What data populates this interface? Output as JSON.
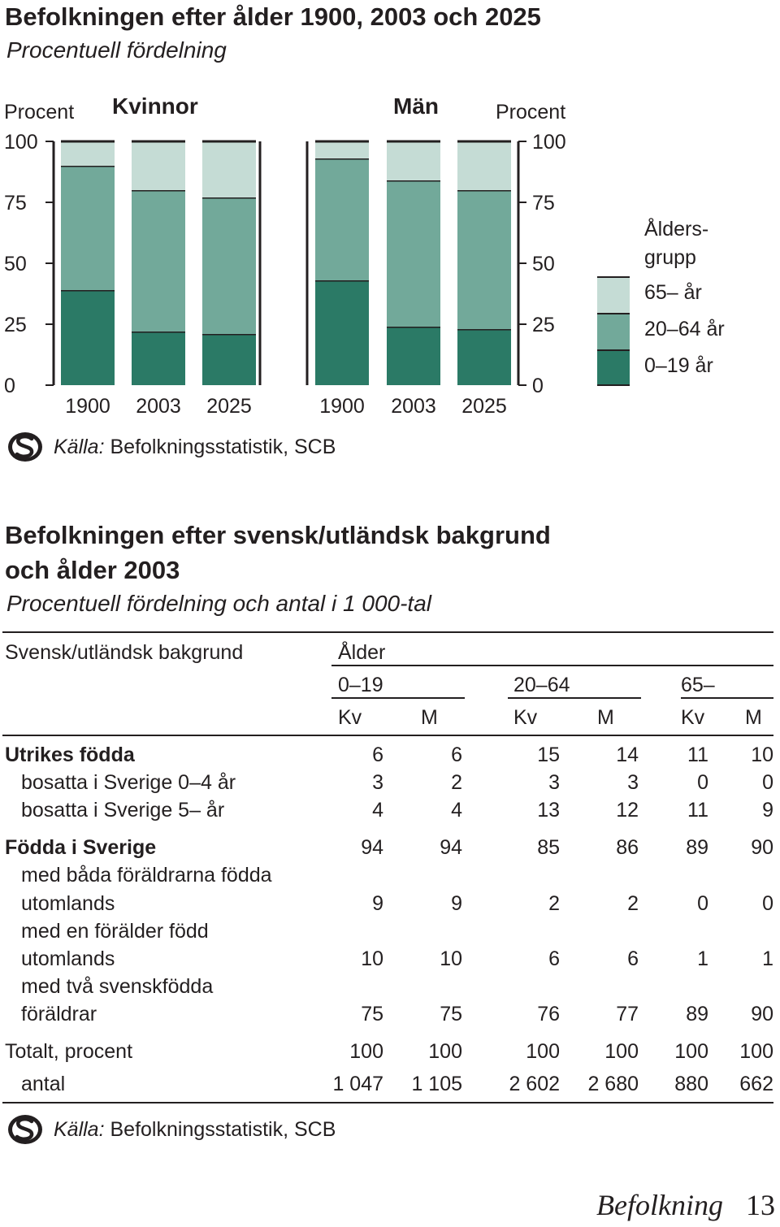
{
  "chart": {
    "title": "Befolkningen efter ålder 1900, 2003 och 2025",
    "subtitle": "Procentuell fördelning",
    "y_unit_left": "Procent",
    "y_unit_right": "Procent",
    "panel_left_label": "Kvinnor",
    "panel_right_label": "Män",
    "legend_title_line1": "Ålders-",
    "legend_title_line2": "grupp",
    "source_label": "Källa:",
    "source_text": "Befolkningsstatistik, SCB",
    "colors": {
      "age_0_19": "#2b7a66",
      "age_20_64": "#72a99a",
      "age_65": "#c5dcd5",
      "ink": "#231f20"
    }
  },
  "chart_data": {
    "type": "bar",
    "stacked": true,
    "title": "Befolkningen efter ålder 1900, 2003 och 2025",
    "subtitle": "Procentuell fördelning",
    "ylabel": "Procent",
    "ylim": [
      0,
      100
    ],
    "yticks": [
      0,
      25,
      50,
      75,
      100
    ],
    "legend_placement": "right",
    "panels": [
      {
        "name": "Kvinnor",
        "categories": [
          "1900",
          "2003",
          "2025"
        ],
        "series": [
          {
            "name": "0–19 år",
            "values": [
              39,
              22,
              21
            ]
          },
          {
            "name": "20–64 år",
            "values": [
              51,
              58,
              56
            ]
          },
          {
            "name": "65– år",
            "values": [
              10,
              20,
              23
            ]
          }
        ]
      },
      {
        "name": "Män",
        "categories": [
          "1900",
          "2003",
          "2025"
        ],
        "series": [
          {
            "name": "0–19 år",
            "values": [
              43,
              24,
              23
            ]
          },
          {
            "name": "20–64 år",
            "values": [
              50,
              60,
              57
            ]
          },
          {
            "name": "65– år",
            "values": [
              7,
              16,
              20
            ]
          }
        ]
      }
    ]
  },
  "table": {
    "title_line1": "Befolkningen efter svensk/utländsk bakgrund",
    "title_line2": "och ålder 2003",
    "subtitle": "Procentuell fördelning och antal i 1 000-tal",
    "head_stub": "Svensk/utländsk bakgrund",
    "head_group": "Ålder",
    "age_groups": [
      "0–19",
      "20–64",
      "65–"
    ],
    "sex_cols": [
      "Kv",
      "M",
      "Kv",
      "M",
      "Kv",
      "M"
    ],
    "rows": [
      {
        "label": "Utrikes födda",
        "values": [
          "6",
          "6",
          "15",
          "14",
          "11",
          "10"
        ]
      },
      {
        "label": "bosatta i Sverige 0–4 år",
        "values": [
          "3",
          "2",
          "3",
          "3",
          "0",
          "0"
        ]
      },
      {
        "label": "bosatta i Sverige 5– år",
        "values": [
          "4",
          "4",
          "13",
          "12",
          "11",
          "9"
        ]
      },
      {
        "label": "Födda i Sverige",
        "values": [
          "94",
          "94",
          "85",
          "86",
          "89",
          "90"
        ]
      },
      {
        "label_line1": "med båda föräldrarna födda",
        "label": "utomlands",
        "values": [
          "9",
          "9",
          "2",
          "2",
          "0",
          "0"
        ]
      },
      {
        "label_line1": "med en förälder född",
        "label": "utomlands",
        "values": [
          "10",
          "10",
          "6",
          "6",
          "1",
          "1"
        ]
      },
      {
        "label_line1": "med två svenskfödda",
        "label": "föräldrar",
        "values": [
          "75",
          "75",
          "76",
          "77",
          "89",
          "90"
        ]
      },
      {
        "label": "Totalt, procent",
        "values": [
          "100",
          "100",
          "100",
          "100",
          "100",
          "100"
        ]
      },
      {
        "label": "antal",
        "values": [
          "1 047",
          "1 105",
          "2 602",
          "2 680",
          "880",
          "662"
        ]
      }
    ],
    "source_label": "Källa:",
    "source_text": "Befolkningsstatistik, SCB"
  },
  "footer": {
    "section": "Befolkning",
    "page": "13"
  }
}
